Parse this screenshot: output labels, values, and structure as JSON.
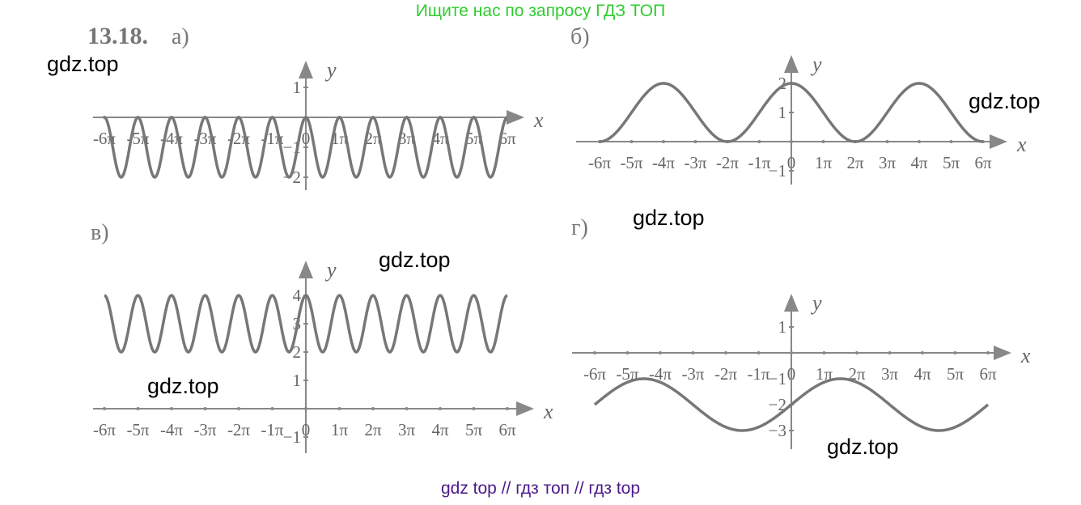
{
  "header": {
    "text": "Ищите нас по запросу ГДЗ ТОП"
  },
  "footer": {
    "text": "gdz top  //  гдз топ  //  гдз top"
  },
  "problem_number": "13.18.",
  "watermark": "gdz.top",
  "colors": {
    "curve": "#777777",
    "axis": "#888888",
    "header": "#2ecc2e",
    "footer": "#4b1a8a"
  },
  "chart_data": [
    {
      "type": "line",
      "label": "а)",
      "xlabel": "x",
      "ylabel": "y",
      "xlim_pi": [
        -6,
        6
      ],
      "x_ticks": [
        "-6π",
        "-5π",
        "-4π",
        "-3π",
        "-2π",
        "-1π",
        "0",
        "1π",
        "2π",
        "3π",
        "4π",
        "5π",
        "6π"
      ],
      "y_ticks": [
        "1",
        "-1",
        "-2"
      ],
      "y_tick_values": [
        1,
        -1,
        -2
      ],
      "function": {
        "amplitude": 1,
        "angular": 2,
        "shift": -1,
        "kind": "cos"
      }
    },
    {
      "type": "line",
      "label": "б)",
      "xlabel": "x",
      "ylabel": "y",
      "xlim_pi": [
        -6,
        6
      ],
      "x_ticks": [
        "-6π",
        "-5π",
        "-4π",
        "-3π",
        "-2π",
        "-1π",
        "0",
        "1π",
        "2π",
        "3π",
        "4π",
        "5π",
        "6π"
      ],
      "y_ticks": [
        "2",
        "1",
        "-1"
      ],
      "y_tick_values": [
        2,
        1,
        -1
      ],
      "function": {
        "amplitude": 1,
        "angular": 0.5,
        "shift": 1,
        "kind": "cos"
      }
    },
    {
      "type": "line",
      "label": "в)",
      "xlabel": "x",
      "ylabel": "y",
      "xlim_pi": [
        -6,
        6
      ],
      "x_ticks": [
        "-6π",
        "-5π",
        "-4π",
        "-3π",
        "-2π",
        "-1π",
        "0",
        "1π",
        "2π",
        "3π",
        "4π",
        "5π",
        "6π"
      ],
      "y_ticks": [
        "4",
        "3",
        "2",
        "1",
        "-1"
      ],
      "y_tick_values": [
        4,
        3,
        2,
        1,
        -1
      ],
      "function": {
        "amplitude": 1,
        "angular": 2,
        "shift": 3,
        "kind": "cos"
      }
    },
    {
      "type": "line",
      "label": "г)",
      "xlabel": "x",
      "ylabel": "y",
      "xlim_pi": [
        -6,
        6
      ],
      "x_ticks": [
        "-6π",
        "-5π",
        "-4π",
        "-3π",
        "-2π",
        "-1π",
        "0",
        "1π",
        "2π",
        "3π",
        "4π",
        "5π",
        "6π"
      ],
      "y_ticks": [
        "1",
        "-1",
        "-2",
        "-3"
      ],
      "y_tick_values": [
        1,
        -1,
        -2,
        -3
      ],
      "function": {
        "amplitude": 1,
        "angular": 0.3333,
        "shift": -2,
        "kind": "sin"
      }
    }
  ]
}
